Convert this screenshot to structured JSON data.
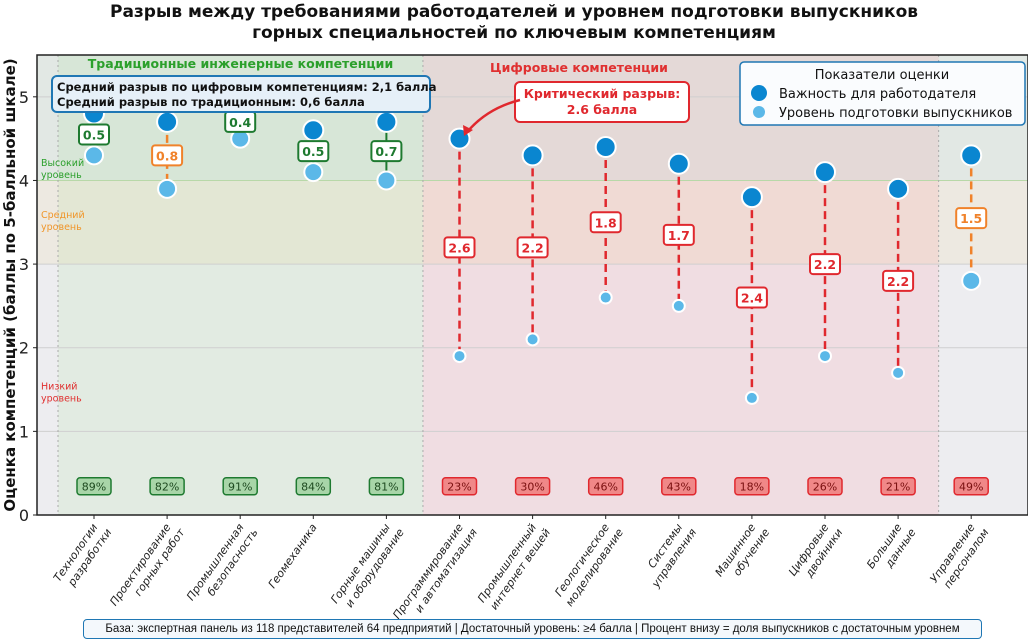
{
  "chart_data": {
    "type": "scatter",
    "title": "Разрыв между требованиями работодателей и уровнем подготовки выпускников горных специальностей по ключевым компетенциям",
    "title_lines": [
      "Разрыв между требованиями работодателей и уровнем подготовки выпускников",
      "горных специальностей по ключевым компетенциям"
    ],
    "ylabel": "Оценка компетенций (баллы по 5-балльной шкале)",
    "ylim": [
      0,
      5.5
    ],
    "yticks": [
      "0",
      "1",
      "2",
      "3",
      "4",
      "5"
    ],
    "grid": "horizontal",
    "categories": [
      "Технологии\nразработки",
      "Проектирование\nгорных работ",
      "Промышленная\nбезопасность",
      "Геомеханика",
      "Горные машины\nи оборудование",
      "Программирование\nи автоматизация",
      "Промышленный\nинтернет вещей",
      "Геологическое\nмоделирование",
      "Системы\nуправления",
      "Машинное\nобучение",
      "Цифровые\nдвойники",
      "Большие\nданные",
      "Управление\nперсоналом"
    ],
    "series": [
      {
        "name": "Важность для работодателя",
        "color": "#0a86d0",
        "values": [
          4.8,
          4.7,
          4.9,
          4.6,
          4.7,
          4.5,
          4.3,
          4.4,
          4.2,
          3.8,
          4.1,
          3.9,
          4.3
        ]
      },
      {
        "name": "Уровень подготовки выпускников",
        "color": "#5bb8e8",
        "values": [
          4.3,
          3.9,
          4.5,
          4.1,
          4.0,
          1.9,
          2.1,
          2.6,
          2.5,
          1.4,
          1.9,
          1.7,
          2.8
        ]
      }
    ],
    "gap_labels": [
      "0.5",
      "0.8",
      "0.4",
      "0.5",
      "0.7",
      "2.6",
      "2.2",
      "1.8",
      "1.7",
      "2.4",
      "2.2",
      "2.2",
      "1.5"
    ],
    "percent_labels": [
      "89%",
      "82%",
      "91%",
      "84%",
      "81%",
      "23%",
      "30%",
      "46%",
      "43%",
      "18%",
      "26%",
      "21%",
      "49%"
    ],
    "groups": [
      {
        "label": "Традиционные инженерные компетенции",
        "color": "#2ca02c"
      },
      {
        "label": "Цифровые компетенции",
        "color": "#e03030"
      }
    ],
    "level_labels": [
      {
        "label": "Высокий\nуровень",
        "color": "#2ca02c"
      },
      {
        "label": "Средний\nуровень",
        "color": "#f0962a"
      },
      {
        "label": "Низкий\nуровень",
        "color": "#e03030"
      }
    ],
    "legend": {
      "title": "Показатели оценки",
      "placement": "top-right"
    },
    "summary_box": [
      "Средний разрыв по цифровым компетенциям: 2,1 балла",
      "Средний разрыв по традиционным: 0,6 балла"
    ],
    "annotation": [
      "Критический разрыв:",
      "2.6 балла"
    ],
    "colors": {
      "green": "#1e7a30",
      "orange": "#f0822a",
      "red": "#e0282e"
    }
  },
  "footnote": "База: экспертная панель из 118 представителей 64 предприятий | Достаточный уровень: ≥4 балла | Процент внизу = доля выпускников с достаточным уровнем"
}
